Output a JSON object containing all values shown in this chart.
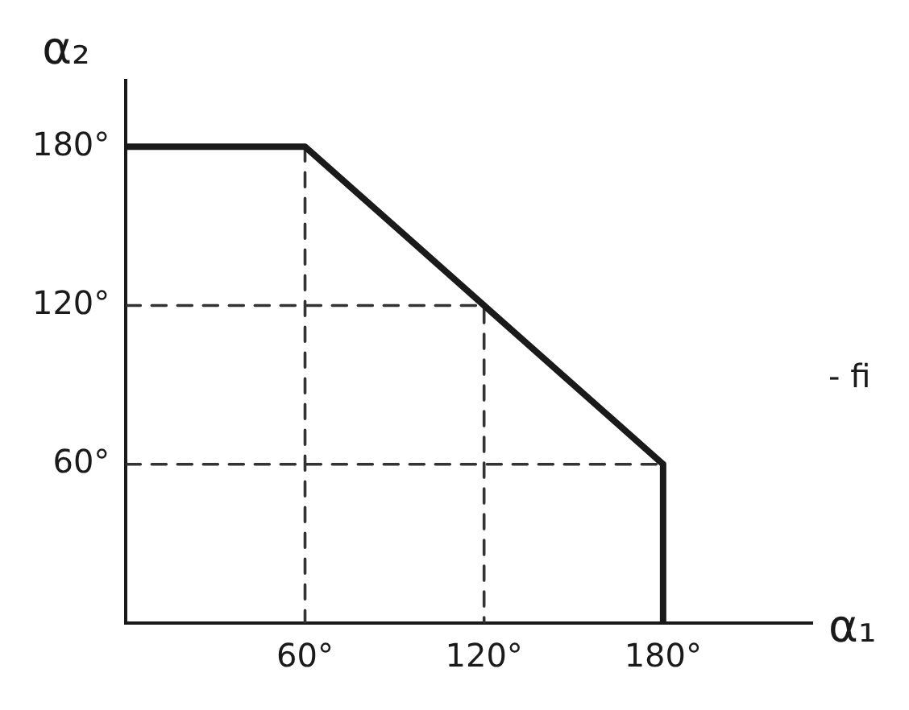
{
  "chart_data": {
    "type": "line",
    "xlabel": "α₁",
    "ylabel": "α₂",
    "xlim": [
      0,
      230
    ],
    "ylim": [
      0,
      205
    ],
    "xticks": [
      {
        "value": 60,
        "label": "60°"
      },
      {
        "value": 120,
        "label": "120°"
      },
      {
        "value": 180,
        "label": "180°"
      }
    ],
    "yticks": [
      {
        "value": 60,
        "label": "60°"
      },
      {
        "value": 120,
        "label": "120°"
      },
      {
        "value": 180,
        "label": "180°"
      }
    ],
    "grid": false,
    "legend": false,
    "marker": "none",
    "series": [
      {
        "color": "#1a1a1a",
        "x": [
          0,
          60,
          120,
          180,
          180
        ],
        "values": [
          180,
          180,
          120,
          60,
          0
        ],
        "line_style": "solid"
      },
      {
        "color": "#333333",
        "x": [
          60,
          60
        ],
        "values": [
          180,
          0
        ],
        "line_style": "dashed"
      },
      {
        "color": "#333333",
        "x": [
          0,
          120,
          120
        ],
        "values": [
          120,
          120,
          0
        ],
        "line_style": "dashed"
      },
      {
        "color": "#333333",
        "x": [
          0,
          180
        ],
        "values": [
          60,
          60
        ],
        "line_style": "dashed"
      }
    ],
    "annotations": [
      "- fi"
    ]
  }
}
